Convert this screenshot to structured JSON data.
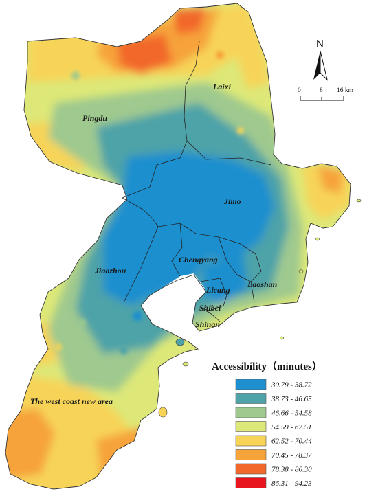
{
  "map": {
    "districts": [
      {
        "id": "laixi",
        "label": "Laixi"
      },
      {
        "id": "pingdu",
        "label": "Pingdu"
      },
      {
        "id": "jimo",
        "label": "Jimo"
      },
      {
        "id": "chengyang",
        "label": "Chengyang"
      },
      {
        "id": "jiaozhou",
        "label": "Jiaozhou"
      },
      {
        "id": "laoshan",
        "label": "Laoshan"
      },
      {
        "id": "licang",
        "label": "Licang"
      },
      {
        "id": "shibei",
        "label": "Shibei"
      },
      {
        "id": "shinan",
        "label": "Shinan"
      },
      {
        "id": "west-coast",
        "label": "The west coast new area"
      }
    ],
    "north_arrow": {
      "label": "N"
    },
    "scale_bar": {
      "ticks": [
        "0",
        "8",
        "16 km"
      ]
    }
  },
  "legend": {
    "title": "Accessibility（minutes）",
    "classes": [
      {
        "range": "30.79 - 38.72",
        "color": "#1e8fcf"
      },
      {
        "range": "38.73 - 46.65",
        "color": "#4ea3a8"
      },
      {
        "range": "46.66 - 54.58",
        "color": "#9fc98e"
      },
      {
        "range": "54.59 - 62.51",
        "color": "#dde878"
      },
      {
        "range": "62.52 - 70.44",
        "color": "#f7d458"
      },
      {
        "range": "70.45 - 78.37",
        "color": "#f6a33a"
      },
      {
        "range": "78.38 - 86.30",
        "color": "#f2672a"
      },
      {
        "range": "86.31 - 94.23",
        "color": "#e8141e"
      }
    ]
  }
}
